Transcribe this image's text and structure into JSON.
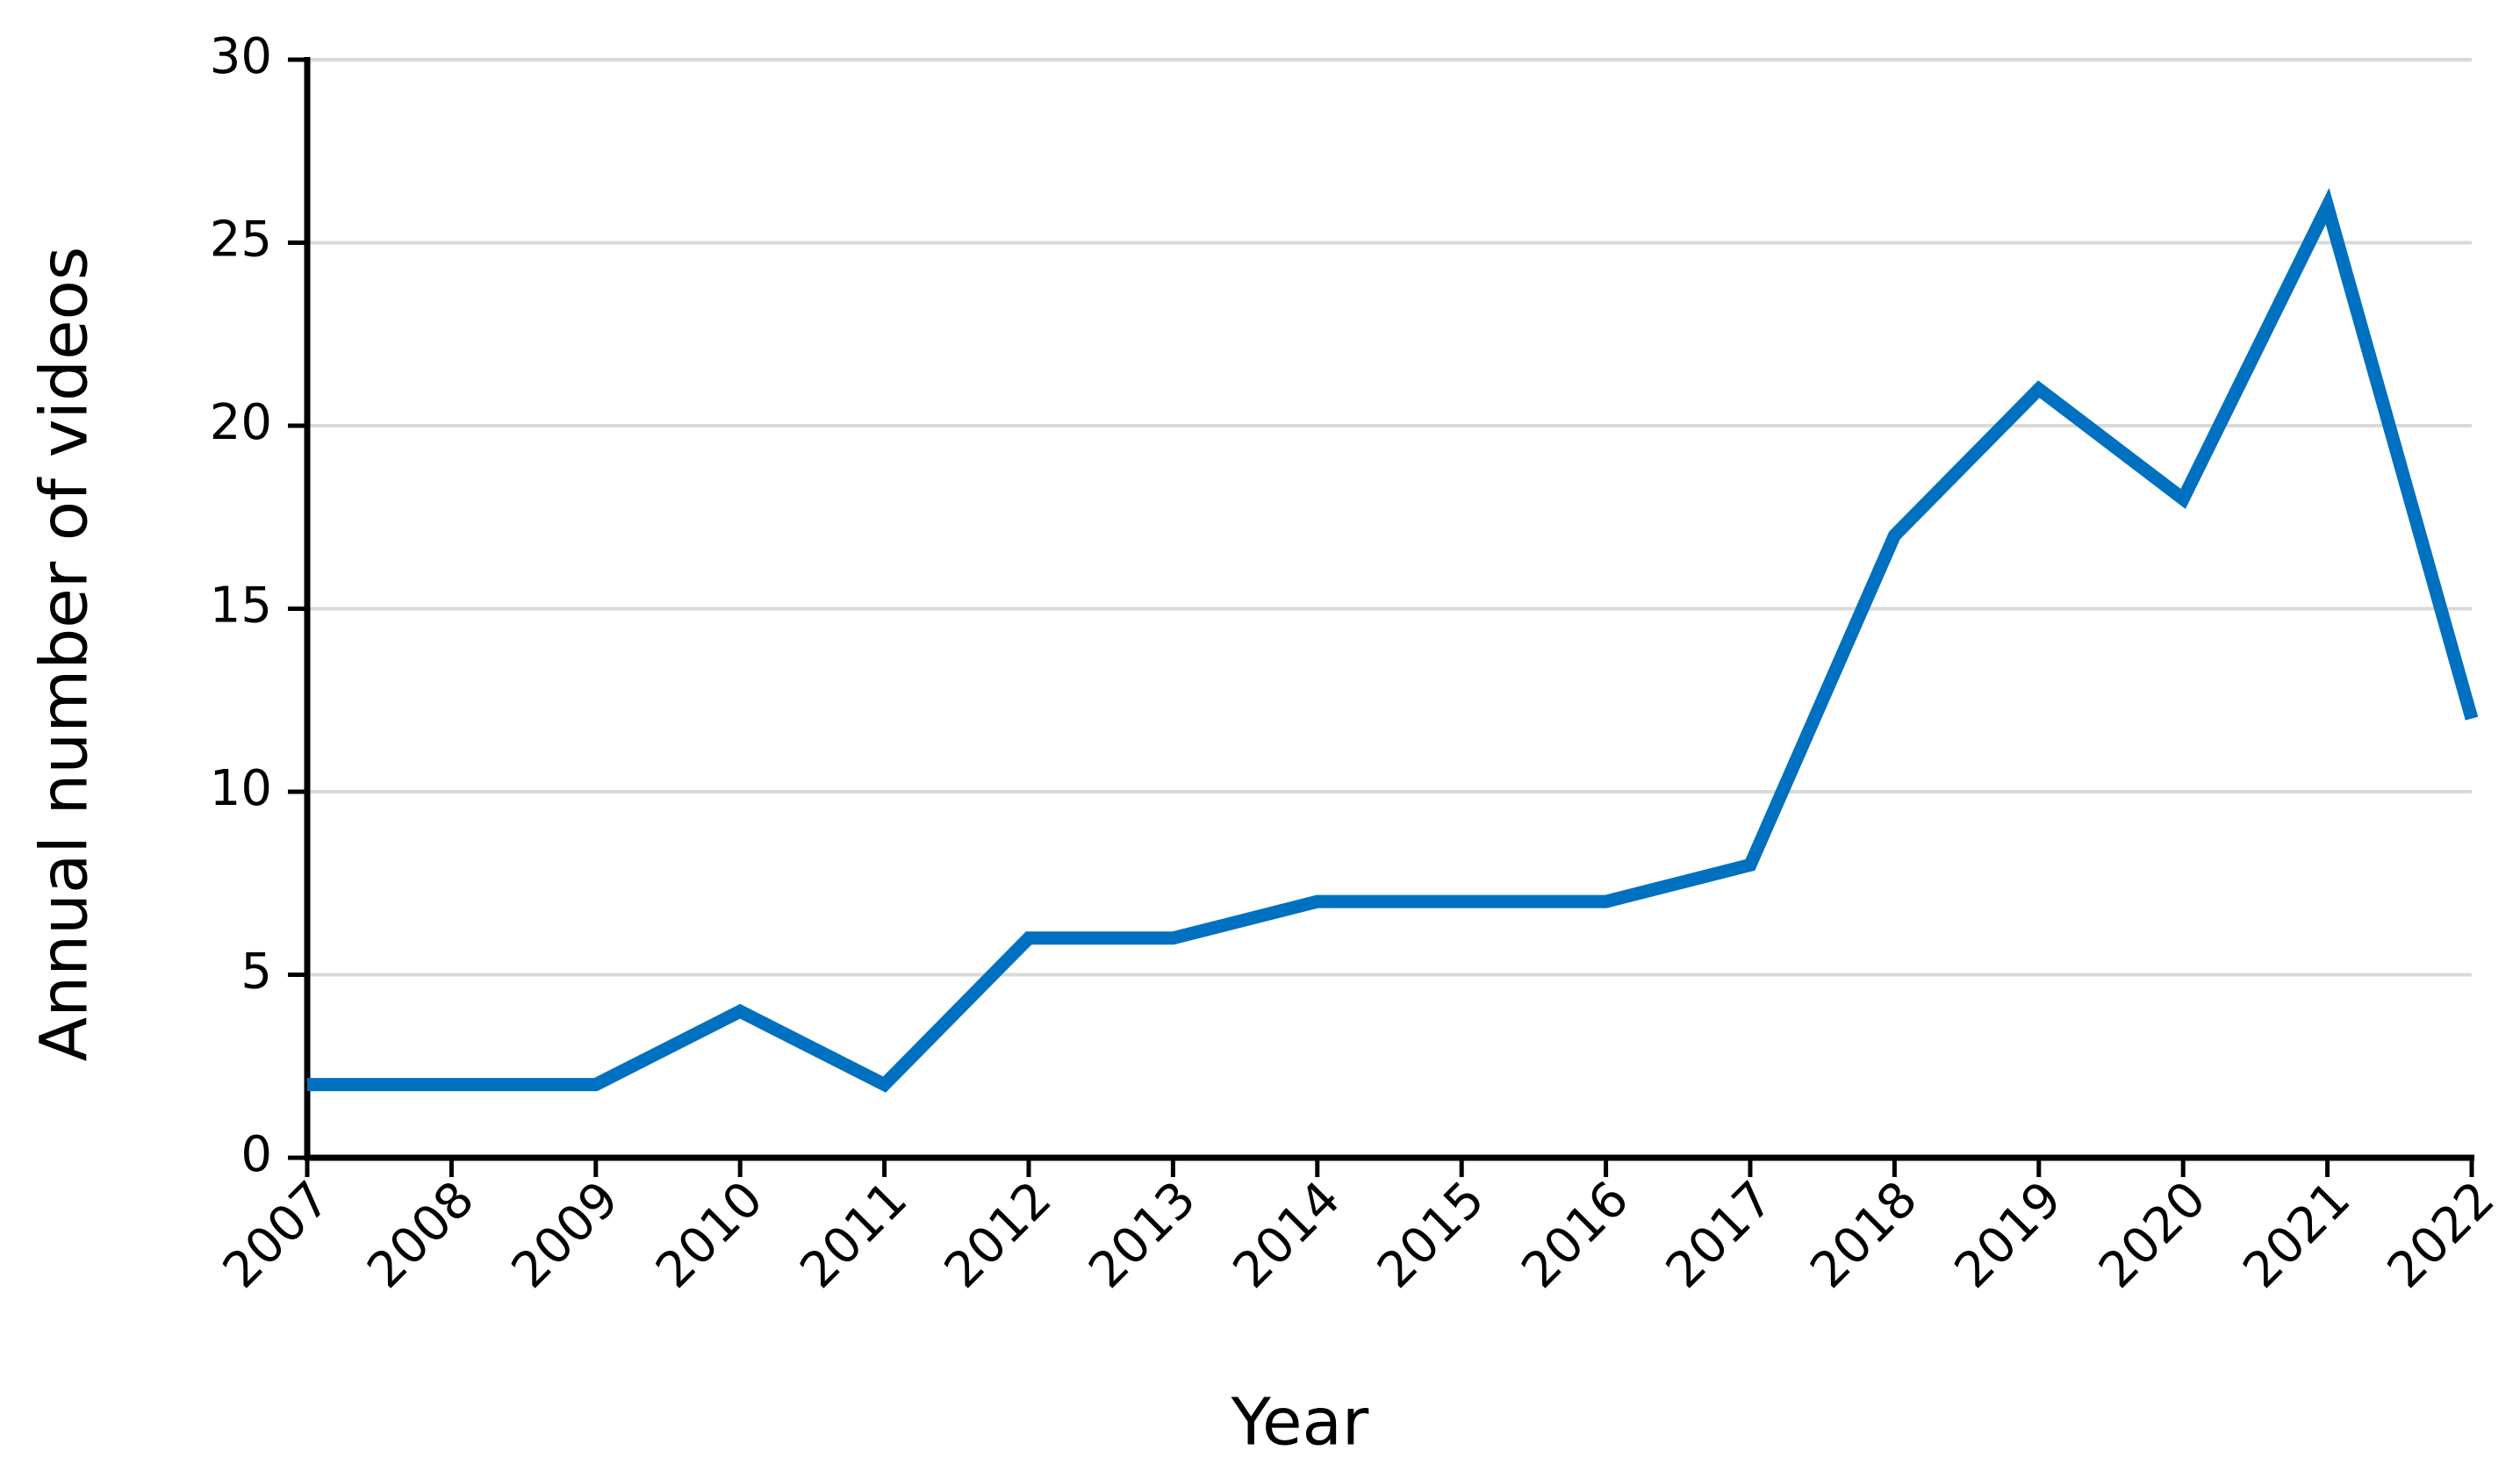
{
  "chart_data": {
    "type": "line",
    "x_label": "Year",
    "y_label": "Annual number of videos",
    "x": [
      2007,
      2008,
      2009,
      2010,
      2011,
      2012,
      2013,
      2014,
      2015,
      2016,
      2017,
      2018,
      2019,
      2020,
      2021,
      2022
    ],
    "values": [
      2,
      2,
      2,
      4,
      2,
      6,
      6,
      7,
      7,
      7,
      8,
      17,
      21,
      18,
      26,
      12
    ],
    "color": "#0070c0",
    "xlim": [
      2007,
      2022
    ],
    "xticks": [
      2007,
      2008,
      2009,
      2010,
      2011,
      2012,
      2013,
      2014,
      2015,
      2016,
      2017,
      2018,
      2019,
      2020,
      2021,
      2022
    ],
    "ylim": [
      0,
      30
    ],
    "yticks": [
      0,
      5,
      10,
      15,
      20,
      25,
      30
    ],
    "grid": true
  }
}
